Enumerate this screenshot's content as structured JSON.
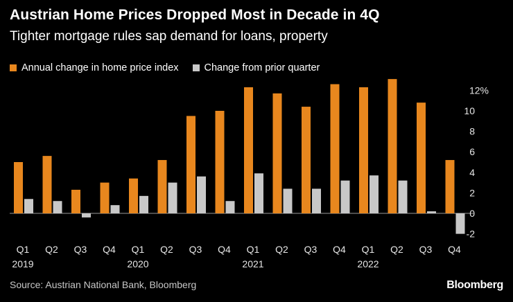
{
  "title": "Austrian Home Prices Dropped Most in Decade in 4Q",
  "subtitle": "Tighter mortgage rules sap demand for loans, property",
  "source": "Source: Austrian National Bank, Bloomberg",
  "brand": "Bloomberg",
  "colors": {
    "annual": "#e8871e",
    "quarter": "#c8c8c8",
    "axis": "#888888",
    "background": "#000000"
  },
  "chart_data": {
    "type": "bar",
    "title": "Austrian Home Prices Dropped Most in Decade in 4Q",
    "categories": [
      "Q1",
      "Q2",
      "Q3",
      "Q4",
      "Q1",
      "Q2",
      "Q3",
      "Q4",
      "Q1",
      "Q2",
      "Q3",
      "Q4",
      "Q1",
      "Q2",
      "Q3",
      "Q4"
    ],
    "year_labels": [
      {
        "index": 0,
        "label": "2019"
      },
      {
        "index": 4,
        "label": "2020"
      },
      {
        "index": 8,
        "label": "2021"
      },
      {
        "index": 12,
        "label": "2022"
      }
    ],
    "series": [
      {
        "name": "Annual change in home price index",
        "color": "#e8871e",
        "values": [
          5.0,
          5.6,
          2.3,
          3.0,
          3.4,
          5.2,
          9.5,
          10.0,
          12.3,
          11.7,
          10.4,
          12.6,
          12.3,
          13.1,
          10.8,
          5.2
        ]
      },
      {
        "name": "Change from prior quarter",
        "color": "#c8c8c8",
        "values": [
          1.4,
          1.2,
          -0.4,
          0.8,
          1.7,
          3.0,
          3.6,
          1.2,
          3.9,
          2.4,
          2.4,
          3.2,
          3.7,
          3.2,
          0.2,
          -2.0
        ]
      }
    ],
    "y_ticks": [
      "12%",
      "10",
      "8",
      "6",
      "4",
      "2",
      "0",
      "-2"
    ],
    "y_tick_values": [
      12,
      10,
      8,
      6,
      4,
      2,
      0,
      -2
    ],
    "ylim": [
      -2,
      13.5
    ],
    "xlabel": "",
    "ylabel": "",
    "legend_position": "top-left"
  }
}
